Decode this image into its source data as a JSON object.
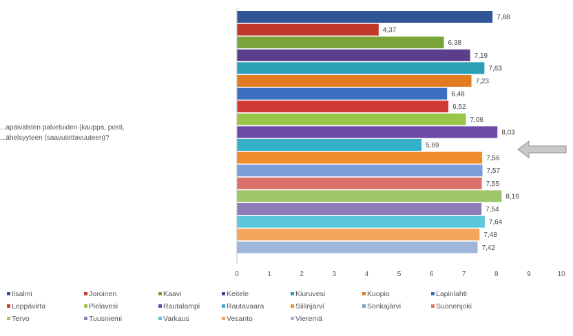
{
  "chart_data": {
    "type": "bar",
    "orientation": "horizontal",
    "question_lines": [
      "...apäivälsten palveluiden (kauppa, posti,",
      "...ähelsyyteen (saavutettavuuteen)?"
    ],
    "xlim": [
      0,
      10
    ],
    "ticks": [
      "0",
      "1",
      "2",
      "3",
      "4",
      "5",
      "6",
      "7",
      "8",
      "9",
      "10"
    ],
    "legend_position": "bottom",
    "grid": false,
    "annotation": "arrow pointing at Rautavaara",
    "series": [
      {
        "name": "Iisalmi",
        "value": 7.88,
        "label": "7,88",
        "color": "#2f5597"
      },
      {
        "name": "Joroinen",
        "value": 4.37,
        "label": "4,37",
        "color": "#c0392b"
      },
      {
        "name": "Kaavi",
        "value": 6.38,
        "label": "6,38",
        "color": "#7aa43a"
      },
      {
        "name": "Keitele",
        "value": 7.19,
        "label": "7,19",
        "color": "#5b3f8c"
      },
      {
        "name": "Kiuruvesi",
        "value": 7.63,
        "label": "7,63",
        "color": "#2aa0b6"
      },
      {
        "name": "Kuopio",
        "value": 7.23,
        "label": "7,23",
        "color": "#e07b22"
      },
      {
        "name": "Lapinlahti",
        "value": 6.48,
        "label": "6,48",
        "color": "#3a6fc2"
      },
      {
        "name": "Leppävirta",
        "value": 6.52,
        "label": "6,52",
        "color": "#cf3c35"
      },
      {
        "name": "Pielavesi",
        "value": 7.06,
        "label": "7,06",
        "color": "#98c54a"
      },
      {
        "name": "Rautalampi",
        "value": 8.03,
        "label": "8,03",
        "color": "#6e4aa8"
      },
      {
        "name": "Rautavaara",
        "value": 5.69,
        "label": "5,69",
        "color": "#34b1c9"
      },
      {
        "name": "Siilinjärvi",
        "value": 7.56,
        "label": "7,56",
        "color": "#f08d2b"
      },
      {
        "name": "Sonkajärvi",
        "value": 7.57,
        "label": "7,57",
        "color": "#7a9fd6"
      },
      {
        "name": "Suonenjoki",
        "value": 7.55,
        "label": "7,55",
        "color": "#d9706a"
      },
      {
        "name": "Tervo",
        "value": 8.16,
        "label": "8,16",
        "color": "#9dc76a"
      },
      {
        "name": "Tuusniemi",
        "value": 7.54,
        "label": "7,54",
        "color": "#8e7bb8"
      },
      {
        "name": "Varkaus",
        "value": 7.64,
        "label": "7,64",
        "color": "#5cc6da"
      },
      {
        "name": "Vesanto",
        "value": 7.48,
        "label": "7,48",
        "color": "#f5a65b"
      },
      {
        "name": "Vieremä",
        "value": 7.42,
        "label": "7,42",
        "color": "#9fb6dc"
      }
    ]
  }
}
